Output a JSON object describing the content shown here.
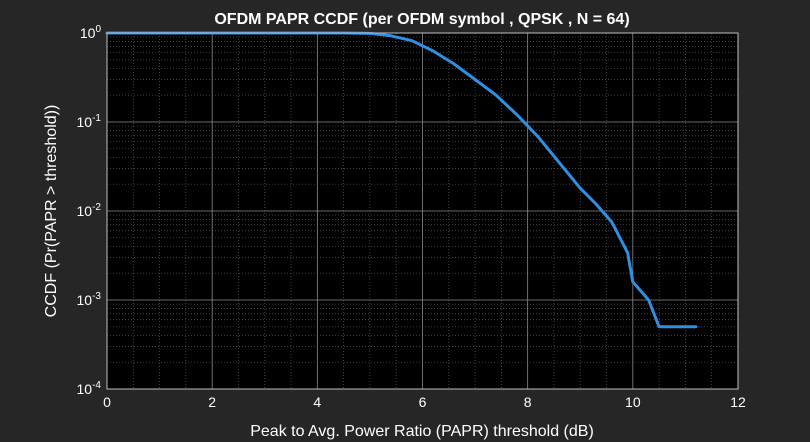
{
  "chart_data": {
    "type": "line",
    "title": "OFDM PAPR CCDF (per OFDM symbol , QPSK , N = 64)",
    "xlabel": "Peak to Avg. Power Ratio (PAPR) threshold (dB)",
    "ylabel": "CCDF (Pr(PAPR > threshold))",
    "xlim": [
      0,
      12
    ],
    "ylim": [
      0.0001,
      1
    ],
    "yscale": "log",
    "grid": true,
    "minor_grid": true,
    "x_ticks": [
      "0",
      "2",
      "4",
      "6",
      "8",
      "10",
      "12"
    ],
    "y_ticks": [
      {
        "base": "10",
        "exp": "0"
      },
      {
        "base": "10",
        "exp": "-1"
      },
      {
        "base": "10",
        "exp": "-2"
      },
      {
        "base": "10",
        "exp": "-3"
      },
      {
        "base": "10",
        "exp": "-4"
      }
    ],
    "series": [
      {
        "color": "#2f8fe0",
        "x": [
          0,
          4.5,
          5.0,
          5.4,
          5.8,
          6.2,
          6.6,
          7.0,
          7.4,
          7.8,
          8.2,
          8.6,
          9.0,
          9.3,
          9.6,
          9.9,
          10.0,
          10.3,
          10.5,
          10.8,
          11.2
        ],
        "y": [
          1,
          1,
          0.99,
          0.93,
          0.82,
          0.63,
          0.45,
          0.3,
          0.2,
          0.12,
          0.068,
          0.035,
          0.018,
          0.012,
          0.0075,
          0.0034,
          0.0016,
          0.001,
          0.0005,
          0.0005,
          0.0005
        ]
      }
    ]
  }
}
